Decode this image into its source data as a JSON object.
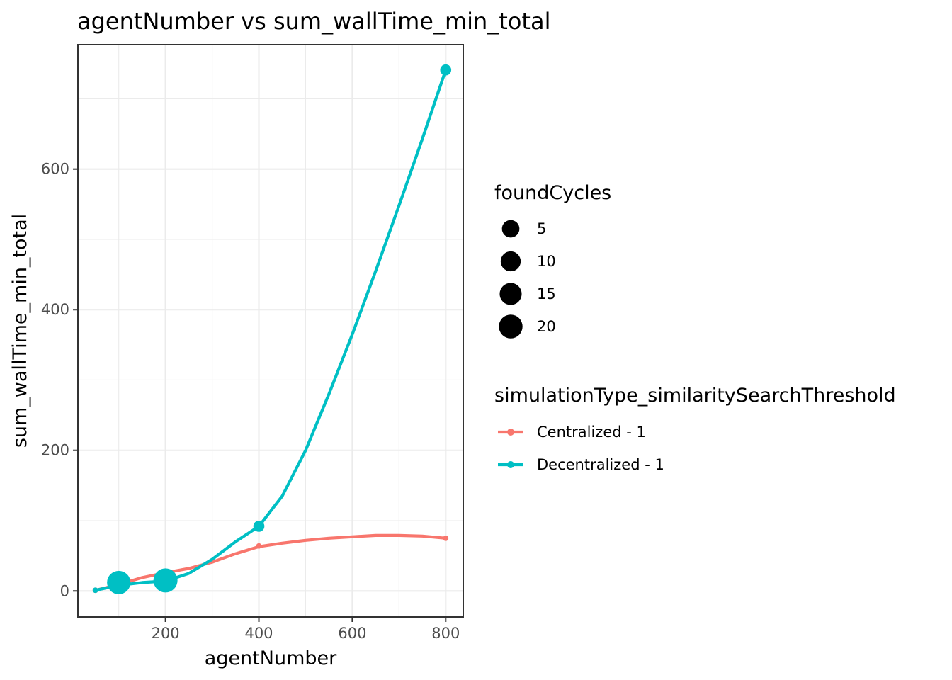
{
  "chart_data": {
    "type": "line",
    "title": "agentNumber  vs  sum_wallTime_min_total",
    "xlabel": "agentNumber",
    "ylabel": "sum_wallTime_min_total",
    "xlim": [
      12.5,
      837.5
    ],
    "ylim": [
      -37,
      777
    ],
    "xticks": [
      200,
      400,
      600,
      800
    ],
    "yticks": [
      0,
      200,
      400,
      600
    ],
    "grid": true,
    "legend_position": "right",
    "size_legend": {
      "title": "foundCycles",
      "entries": [
        {
          "label": "5",
          "value": 5
        },
        {
          "label": "10",
          "value": 10
        },
        {
          "label": "15",
          "value": 15
        },
        {
          "label": "20",
          "value": 20
        }
      ]
    },
    "color_legend": {
      "title": "simulationType_similaritySearchThreshold"
    },
    "series": [
      {
        "name": "Centralized - 1",
        "color": "#F8766D",
        "points": [
          {
            "x": 50,
            "y": 1,
            "size": 1
          },
          {
            "x": 100,
            "y": 9,
            "size": 1
          },
          {
            "x": 200,
            "y": 26,
            "size": 1
          },
          {
            "x": 400,
            "y": 64,
            "size": 1
          },
          {
            "x": 800,
            "y": 75,
            "size": 1
          }
        ],
        "smooth": [
          {
            "x": 50,
            "y": 1
          },
          {
            "x": 100,
            "y": 9
          },
          {
            "x": 150,
            "y": 19
          },
          {
            "x": 200,
            "y": 26
          },
          {
            "x": 250,
            "y": 32
          },
          {
            "x": 300,
            "y": 41
          },
          {
            "x": 350,
            "y": 53
          },
          {
            "x": 400,
            "y": 63
          },
          {
            "x": 450,
            "y": 68
          },
          {
            "x": 500,
            "y": 72
          },
          {
            "x": 550,
            "y": 75
          },
          {
            "x": 600,
            "y": 77
          },
          {
            "x": 650,
            "y": 79
          },
          {
            "x": 700,
            "y": 79
          },
          {
            "x": 750,
            "y": 78
          },
          {
            "x": 800,
            "y": 75
          }
        ]
      },
      {
        "name": "Decentralized - 1",
        "color": "#00BFC4",
        "points": [
          {
            "x": 50,
            "y": 1,
            "size": 1
          },
          {
            "x": 100,
            "y": 12,
            "size": 18
          },
          {
            "x": 200,
            "y": 15,
            "size": 19
          },
          {
            "x": 400,
            "y": 92,
            "size": 4
          },
          {
            "x": 800,
            "y": 741,
            "size": 4
          }
        ],
        "smooth": [
          {
            "x": 50,
            "y": 1
          },
          {
            "x": 100,
            "y": 8
          },
          {
            "x": 150,
            "y": 12
          },
          {
            "x": 200,
            "y": 14
          },
          {
            "x": 250,
            "y": 25
          },
          {
            "x": 300,
            "y": 45
          },
          {
            "x": 350,
            "y": 70
          },
          {
            "x": 400,
            "y": 92
          },
          {
            "x": 450,
            "y": 135
          },
          {
            "x": 500,
            "y": 200
          },
          {
            "x": 550,
            "y": 280
          },
          {
            "x": 600,
            "y": 365
          },
          {
            "x": 650,
            "y": 455
          },
          {
            "x": 700,
            "y": 548
          },
          {
            "x": 750,
            "y": 643
          },
          {
            "x": 800,
            "y": 741
          }
        ]
      }
    ]
  }
}
